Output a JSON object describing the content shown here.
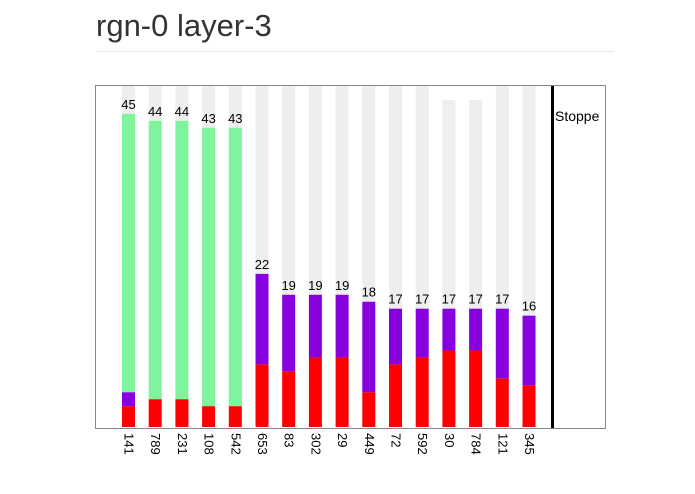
{
  "page": {
    "title": "rgn-0 layer-3"
  },
  "colors": {
    "background_track": "#eeeeee",
    "red": "#ff0000",
    "purple": "#8800dd",
    "green": "#7ef59c"
  },
  "chart_data": {
    "type": "bar",
    "stacked": true,
    "categories": [
      "141",
      "789",
      "231",
      "108",
      "542",
      "653",
      "83",
      "302",
      "29",
      "449",
      "72",
      "592",
      "30",
      "784",
      "121",
      "345"
    ],
    "totals": [
      45,
      44,
      44,
      43,
      43,
      22,
      19,
      19,
      19,
      18,
      17,
      17,
      17,
      17,
      17,
      16
    ],
    "series": [
      {
        "color": "#ff0000",
        "values": [
          3,
          4,
          4,
          3,
          3,
          9,
          8,
          10,
          10,
          5,
          9,
          10,
          11,
          11,
          7,
          6
        ]
      },
      {
        "color": "#8800dd",
        "values": [
          2,
          0,
          0,
          0,
          0,
          13,
          11,
          9,
          9,
          13,
          8,
          7,
          6,
          6,
          10,
          10
        ]
      },
      {
        "color": "#7ef59c",
        "values": [
          40,
          40,
          40,
          40,
          40,
          0,
          0,
          0,
          0,
          0,
          0,
          0,
          0,
          0,
          0,
          0
        ]
      }
    ],
    "background_values": [
      49,
      49,
      49,
      49,
      49,
      49,
      49,
      49,
      49,
      49,
      49,
      49,
      47,
      47,
      49,
      49
    ],
    "ylim": [
      0,
      49
    ],
    "marker": {
      "label": "Stoppe"
    },
    "grid": false,
    "xlabel": "",
    "ylabel": ""
  }
}
